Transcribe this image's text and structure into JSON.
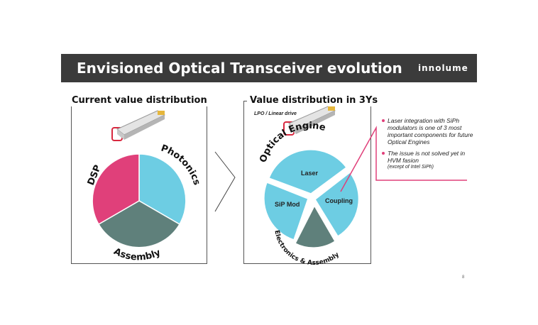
{
  "slide": {
    "title": "Envisioned Optical Transceiver evolution",
    "brand": "innolume",
    "page_number": "8"
  },
  "left_panel": {
    "heading": "Current value distribution",
    "segments": [
      {
        "label": "Photonics",
        "color": "#6dcde3"
      },
      {
        "label": "Assembly",
        "color": "#5f807b"
      },
      {
        "label": "DSP",
        "color": "#e0407a"
      }
    ]
  },
  "right_panel": {
    "heading": "Value distribution in 3Ys",
    "caption": "LPO / Linear drive",
    "arc_top": "Optical Engine",
    "arc_bottom": "Electronics & Assembly",
    "segments": [
      {
        "label": "Laser",
        "color": "#6dcde3"
      },
      {
        "label": "Coupling",
        "color": "#6dcde3"
      },
      {
        "label": "SiP Mod",
        "color": "#6dcde3"
      },
      {
        "label": "",
        "color": "#5f807b"
      }
    ]
  },
  "notes": [
    {
      "text": "Laser integration with SiPh modulators is one of 3 most important components for future Optical Engines",
      "small": ""
    },
    {
      "text": "The issue is not solved yet in HVM fasion",
      "small": "(except of Intel SiPh)"
    }
  ],
  "colors": {
    "accent": "#e0407a",
    "cyan": "#6dcde3",
    "gray_green": "#5f807b",
    "title_bar": "#3b3b3b"
  }
}
